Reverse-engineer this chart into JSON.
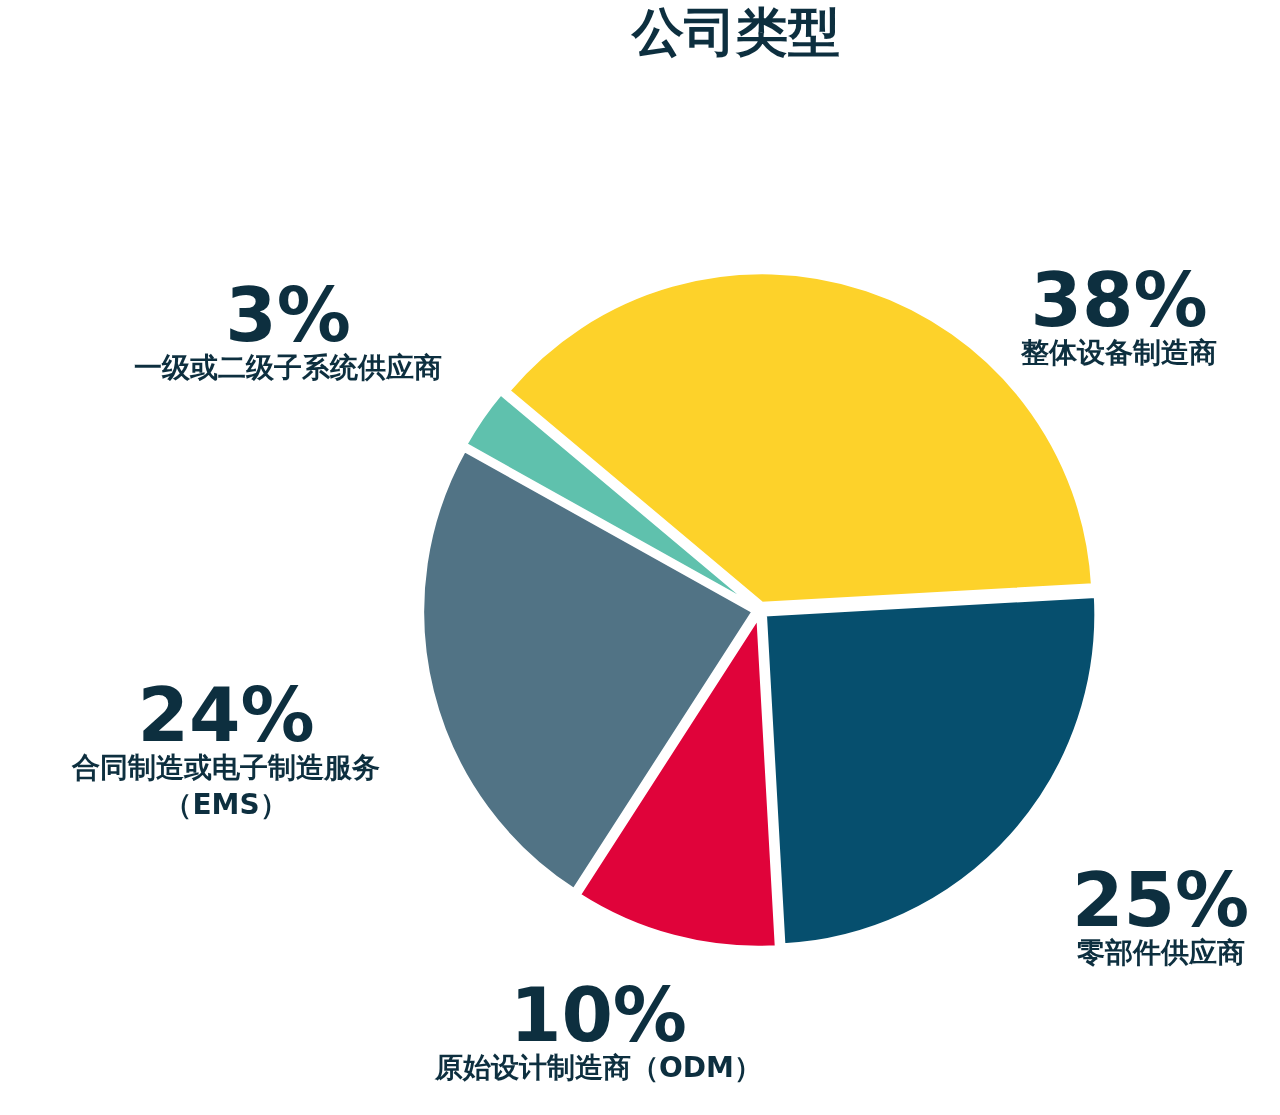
{
  "chart_data": {
    "type": "pie",
    "title": "公司类型",
    "categories": [
      "整体设备制造商",
      "零部件供应商",
      "原始设计制造商（ODM）",
      "合同制造或电子制造服务（EMS）",
      "一级或二级子系统供应商"
    ],
    "values": [
      38,
      25,
      10,
      24,
      3
    ],
    "value_labels": [
      "38%",
      "25%",
      "10%",
      "24%",
      "3%"
    ],
    "colors": [
      "#fdd22a",
      "#064f6e",
      "#e0033a",
      "#517385",
      "#5fc1ad"
    ],
    "legend": false
  }
}
